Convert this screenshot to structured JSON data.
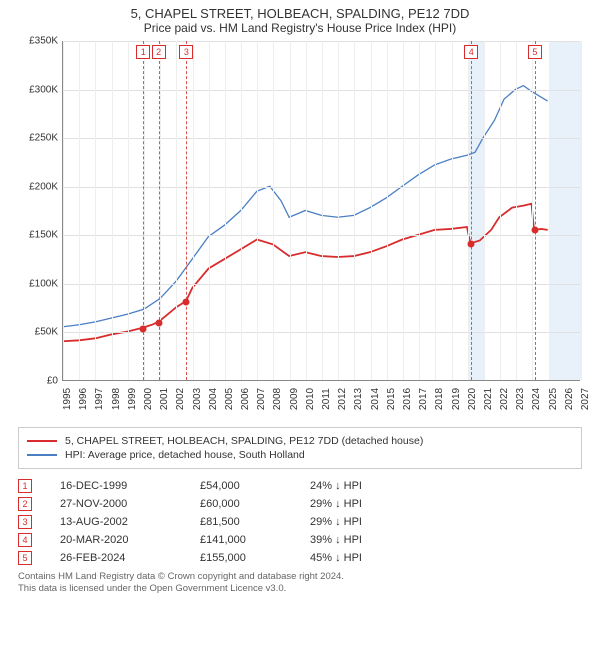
{
  "title": {
    "line1": "5, CHAPEL STREET, HOLBEACH, SPALDING, PE12 7DD",
    "line2": "Price paid vs. HM Land Registry's House Price Index (HPI)"
  },
  "chart": {
    "type": "line",
    "background_color": "#ffffff",
    "grid_color": "#e0e0e0",
    "axis_color": "#888888",
    "label_fontsize": 10,
    "x": {
      "min": 1995,
      "max": 2027,
      "ticks": [
        1995,
        1996,
        1997,
        1998,
        1999,
        2000,
        2001,
        2002,
        2003,
        2004,
        2005,
        2006,
        2007,
        2008,
        2009,
        2010,
        2011,
        2012,
        2013,
        2014,
        2015,
        2016,
        2017,
        2018,
        2019,
        2020,
        2021,
        2022,
        2023,
        2024,
        2025,
        2026,
        2027
      ]
    },
    "y": {
      "min": 0,
      "max": 350000,
      "ticks": [
        0,
        50000,
        100000,
        150000,
        200000,
        250000,
        300000,
        350000
      ],
      "tick_labels": [
        "£0",
        "£50K",
        "£100K",
        "£150K",
        "£200K",
        "£250K",
        "£300K",
        "£350K"
      ]
    },
    "vertical_bands": [
      {
        "from": 2020.0,
        "to": 2021.0,
        "color": "#e8f0fa"
      },
      {
        "from": 2025.0,
        "to": 2027.0,
        "color": "#e8f0fa"
      }
    ],
    "sale_markers": [
      {
        "n": "1",
        "x": 1999.96
      },
      {
        "n": "2",
        "x": 2000.91
      },
      {
        "n": "3",
        "x": 2002.62
      },
      {
        "n": "4",
        "x": 2020.22
      },
      {
        "n": "5",
        "x": 2024.15
      }
    ],
    "series": [
      {
        "name": "property",
        "label": "5, CHAPEL STREET, HOLBEACH, SPALDING, PE12 7DD (detached house)",
        "color": "#d92c2c",
        "line_width": 1.8,
        "points": [
          [
            1995,
            40000
          ],
          [
            1996,
            41000
          ],
          [
            1997,
            43000
          ],
          [
            1998,
            47000
          ],
          [
            1999,
            50000
          ],
          [
            1999.96,
            54000
          ],
          [
            2000.5,
            57000
          ],
          [
            2000.91,
            60000
          ],
          [
            2001.5,
            68000
          ],
          [
            2002,
            75000
          ],
          [
            2002.62,
            81500
          ],
          [
            2003,
            95000
          ],
          [
            2004,
            115000
          ],
          [
            2005,
            125000
          ],
          [
            2006,
            135000
          ],
          [
            2007,
            145000
          ],
          [
            2008,
            140000
          ],
          [
            2009,
            128000
          ],
          [
            2010,
            132000
          ],
          [
            2011,
            128000
          ],
          [
            2012,
            127000
          ],
          [
            2013,
            128000
          ],
          [
            2014,
            132000
          ],
          [
            2015,
            138000
          ],
          [
            2016,
            145000
          ],
          [
            2017,
            150000
          ],
          [
            2018,
            155000
          ],
          [
            2019,
            156000
          ],
          [
            2020,
            158000
          ],
          [
            2020.22,
            141000
          ],
          [
            2020.8,
            144000
          ],
          [
            2021.5,
            155000
          ],
          [
            2022,
            168000
          ],
          [
            2022.8,
            178000
          ],
          [
            2023.5,
            180000
          ],
          [
            2024,
            182000
          ],
          [
            2024.15,
            155000
          ],
          [
            2024.6,
            156000
          ],
          [
            2025,
            155000
          ]
        ]
      },
      {
        "name": "hpi",
        "label": "HPI: Average price, detached house, South Holland",
        "color": "#4a7fc4",
        "line_width": 1.3,
        "points": [
          [
            1995,
            55000
          ],
          [
            1996,
            57000
          ],
          [
            1997,
            60000
          ],
          [
            1998,
            64000
          ],
          [
            1999,
            68000
          ],
          [
            2000,
            73000
          ],
          [
            2001,
            84000
          ],
          [
            2002,
            102000
          ],
          [
            2003,
            125000
          ],
          [
            2004,
            148000
          ],
          [
            2005,
            160000
          ],
          [
            2006,
            175000
          ],
          [
            2007,
            195000
          ],
          [
            2007.8,
            200000
          ],
          [
            2008.5,
            185000
          ],
          [
            2009,
            168000
          ],
          [
            2010,
            175000
          ],
          [
            2011,
            170000
          ],
          [
            2012,
            168000
          ],
          [
            2013,
            170000
          ],
          [
            2014,
            178000
          ],
          [
            2015,
            188000
          ],
          [
            2016,
            200000
          ],
          [
            2017,
            212000
          ],
          [
            2018,
            222000
          ],
          [
            2019,
            228000
          ],
          [
            2020,
            232000
          ],
          [
            2020.5,
            235000
          ],
          [
            2021,
            250000
          ],
          [
            2021.7,
            268000
          ],
          [
            2022.3,
            290000
          ],
          [
            2023,
            300000
          ],
          [
            2023.5,
            304000
          ],
          [
            2024,
            298000
          ],
          [
            2024.6,
            292000
          ],
          [
            2025,
            288000
          ]
        ]
      }
    ],
    "sale_points": [
      {
        "x": 1999.96,
        "y": 54000
      },
      {
        "x": 2000.91,
        "y": 60000
      },
      {
        "x": 2002.62,
        "y": 81500
      },
      {
        "x": 2020.22,
        "y": 141000
      },
      {
        "x": 2024.15,
        "y": 155000
      }
    ]
  },
  "sales_table": {
    "rows": [
      {
        "n": "1",
        "date": "16-DEC-1999",
        "price": "£54,000",
        "diff": "24% ↓ HPI"
      },
      {
        "n": "2",
        "date": "27-NOV-2000",
        "price": "£60,000",
        "diff": "29% ↓ HPI"
      },
      {
        "n": "3",
        "date": "13-AUG-2002",
        "price": "£81,500",
        "diff": "29% ↓ HPI"
      },
      {
        "n": "4",
        "date": "20-MAR-2020",
        "price": "£141,000",
        "diff": "39% ↓ HPI"
      },
      {
        "n": "5",
        "date": "26-FEB-2024",
        "price": "£155,000",
        "diff": "45% ↓ HPI"
      }
    ]
  },
  "footer": {
    "line1": "Contains HM Land Registry data © Crown copyright and database right 2024.",
    "line2": "This data is licensed under the Open Government Licence v3.0."
  }
}
